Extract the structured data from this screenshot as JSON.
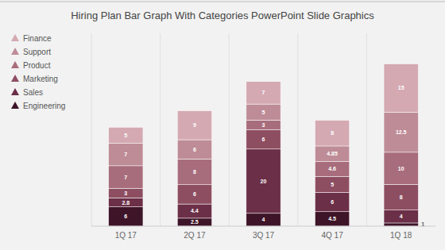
{
  "chart_data": {
    "type": "bar",
    "title": "Hiring Plan Bar Graph With Categories PowerPoint Slide Graphics",
    "categories": [
      "1Q 17",
      "2Q 17",
      "3Q 17",
      "4Q 17",
      "1Q 18"
    ],
    "series": [
      {
        "name": "Engineering",
        "color": "#3e1428",
        "values": [
          6,
          2.5,
          4,
          4.5,
          1
        ]
      },
      {
        "name": "Sales",
        "color": "#6b2f47",
        "values": [
          2.8,
          4.4,
          20,
          6,
          4
        ]
      },
      {
        "name": "Marketing",
        "color": "#8e4e61",
        "values": [
          3,
          6,
          6,
          5,
          8
        ]
      },
      {
        "name": "Product",
        "color": "#a86d7c",
        "values": [
          7,
          8,
          3,
          4.6,
          10
        ]
      },
      {
        "name": "Support",
        "color": "#be8c97",
        "values": [
          7,
          6,
          5,
          4.85,
          12.5
        ]
      },
      {
        "name": "Finance",
        "color": "#d4a9b2",
        "values": [
          5,
          9,
          7,
          8,
          15
        ]
      }
    ],
    "stacked": true,
    "data_labels": true,
    "ylim": [
      0,
      60
    ],
    "yticks": [],
    "tick_labels": "x",
    "legend": "upper left",
    "grid": false
  }
}
